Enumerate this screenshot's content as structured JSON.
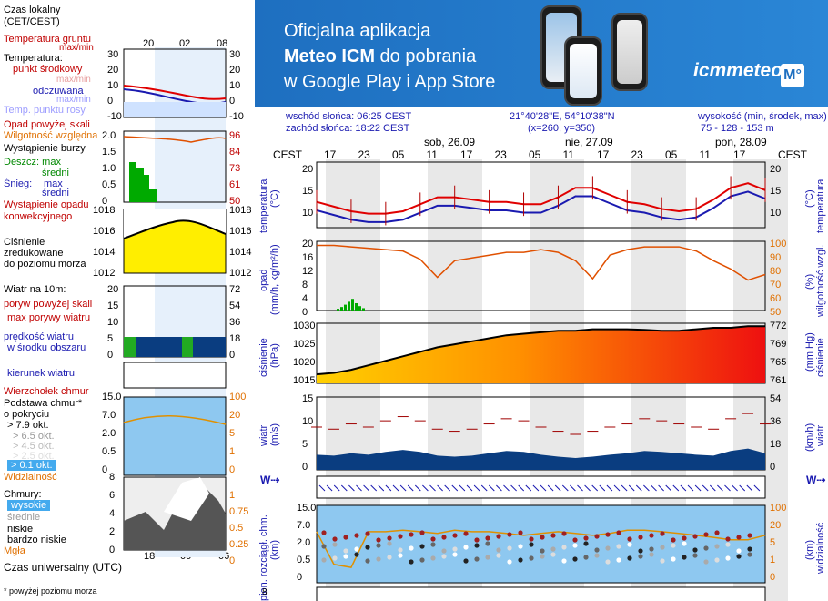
{
  "banner": {
    "line1": "Oficjalna aplikacja",
    "line2_bold": "Meteo ICM",
    "line2_rest": " do pobrania",
    "line3": "w Google Play i App Store",
    "logo": "icmmeteo",
    "badge": "M°"
  },
  "info": {
    "sunrise": "wschód słońca: 06:25 CEST",
    "sunset": "zachód słońca: 18:22 CEST",
    "coords": "21°40'28\"E, 54°10'38\"N",
    "grid": "(x=260,  y=350)",
    "height_label": "wysokość (min, środek, max)",
    "height_values": "75 - 128 - 153 m"
  },
  "days": [
    "sob, 26.09",
    "nie, 27.09",
    "pon, 28.09"
  ],
  "hours": [
    "17",
    "23",
    "05",
    "11",
    "17",
    "23",
    "05",
    "11",
    "17",
    "23",
    "05",
    "11",
    "17"
  ],
  "tz": "CEST",
  "legend": {
    "local_time": "Czas lokalny",
    "local_time2": "(CET/CEST)",
    "hours_top": [
      "20",
      "02",
      "08"
    ],
    "soil_temp": "Temperatura gruntu",
    "soil_maxmin": "max/min",
    "temperature": "Temperatura:",
    "midpoint": "punkt środkowy",
    "max_min": "max/min",
    "feels": "odczuwana",
    "dewpoint": "Temp. punktu rosy",
    "temp_axis": [
      "30",
      "20",
      "10",
      "0",
      "-10"
    ],
    "precip_above": "Opad powyżej skali",
    "humidity": "Wilgotność względna",
    "storm": "Wystąpienie burzy",
    "rain": "Deszcz: max",
    "rain_avg": "średni",
    "snow": "Śnieg:",
    "snow_max": "max",
    "snow_avg": "średni",
    "convective": "Wystąpienie opadu",
    "convective2": "konwekcyjnego",
    "precip_axis": [
      "2.0",
      "1.5",
      "1.0",
      "0.5",
      "0"
    ],
    "humid_axis": [
      "96",
      "84",
      "73",
      "61",
      "50"
    ],
    "pressure": "Ciśnienie",
    "reduced": "zredukowane",
    "reduced2": "do poziomu morza",
    "press_axis": [
      "1018",
      "1016",
      "1014",
      "1012"
    ],
    "wind_at": "Wiatr na 10m:",
    "gusts_above": "poryw powyżej skali",
    "max_gusts": "max porywy wiatru",
    "wind_speed": "prędkość wiatru",
    "wind_center": "w środku obszaru",
    "wind_axis": [
      "20",
      "15",
      "10",
      "5",
      "0"
    ],
    "wind_kmh": [
      "72",
      "54",
      "36",
      "18",
      "0"
    ],
    "wind_dir": "kierunek wiatru",
    "cloud_top": "Wierzchołek chmur",
    "cloud_base": "Podstawa chmur*",
    "coverage": "o pokryciu",
    "okt": [
      "> 7.9 okt.",
      "> 6.5 okt.",
      "> 4.5 okt.",
      "> 2.5 okt.",
      "> 0.1 okt."
    ],
    "visibility": "Widzialność",
    "cloud_axis": [
      "15.0",
      "7.0",
      "2.0",
      "0.5",
      "0"
    ],
    "vis_axis": [
      "100",
      "20",
      "5",
      "1",
      "0"
    ],
    "clouds": "Chmury:",
    "high": "wysokie",
    "medium": "średnie",
    "low": "niskie",
    "very_low": "bardzo niskie",
    "fog": "Mgła",
    "cl_axis": [
      "8",
      "6",
      "4",
      "2",
      "0"
    ],
    "cl_axis_r": [
      "1",
      "0.75",
      "0.5",
      "0.25",
      "0"
    ],
    "utc": "Czas uniwersalny (UTC)",
    "hours_bottom": [
      "18",
      "00",
      "06"
    ],
    "footnote": "* powyżej poziomu morza"
  },
  "axes": {
    "temp_l": [
      "20",
      "15",
      "10"
    ],
    "temp_r": [
      "20",
      "15",
      "10"
    ],
    "temp_label": "temperatura",
    "temp_unit": "(°C)",
    "rain_l": [
      "20",
      "16",
      "12",
      "8",
      "4",
      "0"
    ],
    "rain_r": [
      "100",
      "90",
      "80",
      "70",
      "60",
      "50"
    ],
    "rain_label": "opad",
    "rain_unit": "(mm/h, kg/m²/h)",
    "hum_label": "wilgotność wzgl.",
    "hum_unit": "(%)",
    "press_l": [
      "1030",
      "1025",
      "1020",
      "1015"
    ],
    "press_r": [
      "772",
      "769",
      "765",
      "761"
    ],
    "press_label": "ciśnienie",
    "press_unit": "(hPa)",
    "press_unit_r": "(mm Hg)",
    "wind_l": [
      "15",
      "10",
      "5",
      "0"
    ],
    "wind_r": [
      "54",
      "36",
      "18",
      "0"
    ],
    "wind_label": "wiatr",
    "wind_unit": "(m/s)",
    "wind_unit_r": "(km/h)",
    "cb_l": [
      "15.0",
      "7.0",
      "2.0",
      "0.5",
      "0"
    ],
    "cb_r": [
      "100",
      "20",
      "5",
      "1",
      "0"
    ],
    "cb_label": "pion. rozciągł. chm.",
    "cb_unit": "(km)",
    "vis_label": "widzialność",
    "vis_unit": "(km)",
    "cl_l": "8"
  },
  "colors": {
    "temp_red": "#e00000",
    "temp_blue": "#1a1ab0",
    "humidity": "#e05000",
    "rain": "#00aa00",
    "pressure_low": "#ffd000",
    "pressure_high": "#ee1010",
    "wind": "#0077cc"
  }
}
